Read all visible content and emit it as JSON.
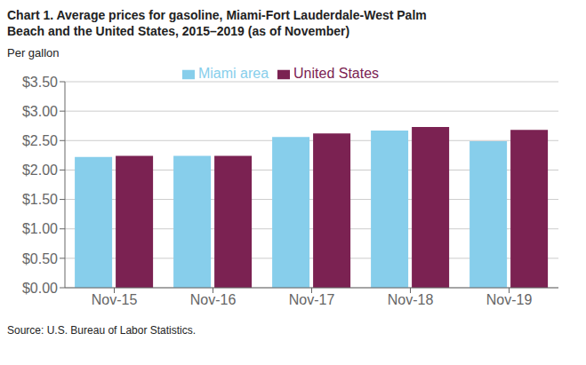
{
  "chart_data": {
    "type": "bar",
    "title": "Chart 1. Average prices for gasoline, Miami-Fort Lauderdale-West Palm\nBeach and the United States, 2015–2019 (as of November)",
    "y_label": "Per gallon",
    "source": "Source: U.S. Bureau of Labor Statistics.",
    "categories": [
      "Nov-15",
      "Nov-16",
      "Nov-17",
      "Nov-18",
      "Nov-19"
    ],
    "series": [
      {
        "name": "Miami area",
        "color": "#87CEEB",
        "values": [
          2.22,
          2.24,
          2.56,
          2.67,
          2.49
        ]
      },
      {
        "name": "United States",
        "color": "#7B2252",
        "values": [
          2.24,
          2.24,
          2.62,
          2.73,
          2.68
        ]
      }
    ],
    "ylim": [
      0,
      3.5
    ],
    "yticks": [
      {
        "value": 0,
        "label": "$0.00"
      },
      {
        "value": 0.5,
        "label": "$0.50"
      },
      {
        "value": 1,
        "label": "$1.00"
      },
      {
        "value": 1.5,
        "label": "$1.50"
      },
      {
        "value": 2,
        "label": "$2.00"
      },
      {
        "value": 2.5,
        "label": "$2.50"
      },
      {
        "value": 3,
        "label": "$3.00"
      },
      {
        "value": 3.5,
        "label": "$3.50"
      }
    ],
    "grid": true,
    "legend": "upper center"
  }
}
